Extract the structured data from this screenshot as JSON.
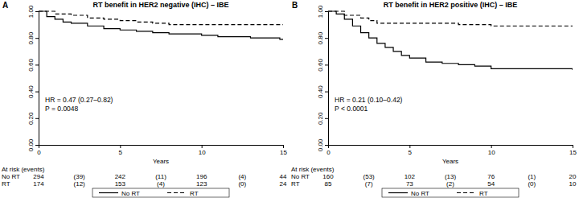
{
  "chart_data": [
    {
      "type": "line",
      "panel": "A",
      "title": "RT benefit in HER2 negative (IHC) – IBE",
      "xlabel": "Years",
      "xlim": [
        0,
        15
      ],
      "xticks": [
        0,
        5,
        10,
        15
      ],
      "ylim": [
        0,
        1
      ],
      "yticks": [
        {
          "value": 0,
          "label": "0.00"
        },
        {
          "value": 0.2,
          "label": "0.20"
        },
        {
          "value": 0.4,
          "label": "0.40"
        },
        {
          "value": 0.6,
          "label": "0.60"
        },
        {
          "value": 0.8,
          "label": "0.80"
        },
        {
          "value": 1,
          "label": "1.00"
        }
      ],
      "grid": false,
      "legend": "bottom",
      "annotations": [
        "HR = 0.47 (0.27–0.82)",
        "P = 0.0048"
      ],
      "series": [
        {
          "name": "No RT",
          "color": "#000000",
          "line_style": "solid",
          "x": [
            0,
            0.5,
            1,
            1.5,
            2,
            3,
            4,
            5,
            6,
            7,
            8,
            10,
            11,
            12,
            13,
            14.8,
            15
          ],
          "values": [
            1,
            0.96,
            0.94,
            0.92,
            0.91,
            0.89,
            0.87,
            0.86,
            0.85,
            0.84,
            0.83,
            0.82,
            0.81,
            0.81,
            0.8,
            0.79,
            0.79
          ]
        },
        {
          "name": "RT",
          "color": "#000000",
          "line_style": "dashed",
          "x": [
            0,
            1,
            2,
            3,
            4,
            5,
            6,
            7,
            8,
            15
          ],
          "values": [
            1,
            0.98,
            0.97,
            0.95,
            0.94,
            0.93,
            0.92,
            0.91,
            0.9,
            0.9
          ]
        }
      ],
      "at_risk": {
        "title": "At risk (events)",
        "times": [
          0,
          5,
          10,
          15
        ],
        "rows": [
          {
            "label": "No RT",
            "numbers": [
              294,
              242,
              196,
              44
            ],
            "events": [
              "(39)",
              "(11)",
              "(4)"
            ]
          },
          {
            "label": "RT",
            "numbers": [
              174,
              153,
              123,
              24
            ],
            "events": [
              "(12)",
              "(4)",
              "(0)"
            ]
          }
        ]
      }
    },
    {
      "type": "line",
      "panel": "B",
      "title": "RT benefit in HER2 positive (IHC) – IBE",
      "xlabel": "Years",
      "xlim": [
        0,
        15
      ],
      "xticks": [
        0,
        5,
        10,
        15
      ],
      "ylim": [
        0,
        1
      ],
      "yticks": [
        {
          "value": 0,
          "label": "0.00"
        },
        {
          "value": 0.2,
          "label": "0.20"
        },
        {
          "value": 0.4,
          "label": "0.40"
        },
        {
          "value": 0.6,
          "label": "0.60"
        },
        {
          "value": 0.8,
          "label": "0.80"
        },
        {
          "value": 1,
          "label": "1.00"
        }
      ],
      "grid": false,
      "legend": "bottom",
      "annotations": [
        "HR = 0.21 (0.10–0.42)",
        "P < 0.0001"
      ],
      "series": [
        {
          "name": "No RT",
          "color": "#000000",
          "line_style": "solid",
          "x": [
            0,
            0.5,
            1,
            1.5,
            2,
            2.5,
            3,
            3.5,
            4,
            4.5,
            5,
            6,
            7,
            8,
            9,
            10,
            15
          ],
          "values": [
            1,
            0.98,
            0.94,
            0.89,
            0.84,
            0.8,
            0.76,
            0.73,
            0.7,
            0.67,
            0.65,
            0.62,
            0.61,
            0.6,
            0.59,
            0.57,
            0.56
          ]
        },
        {
          "name": "RT",
          "color": "#000000",
          "line_style": "dashed",
          "x": [
            0,
            1,
            2,
            2.5,
            3,
            5,
            8,
            10,
            15
          ],
          "values": [
            1,
            0.97,
            0.95,
            0.93,
            0.91,
            0.91,
            0.9,
            0.89,
            0.89
          ]
        }
      ],
      "at_risk": {
        "title": "At risk (events)",
        "times": [
          0,
          5,
          10,
          15
        ],
        "rows": [
          {
            "label": "No RT",
            "numbers": [
              160,
              102,
              76,
              20
            ],
            "events": [
              "(53)",
              "(13)",
              "(1)"
            ]
          },
          {
            "label": "RT",
            "numbers": [
              85,
              73,
              54,
              10
            ],
            "events": [
              "(7)",
              "(2)",
              "(0)"
            ]
          }
        ]
      }
    }
  ]
}
